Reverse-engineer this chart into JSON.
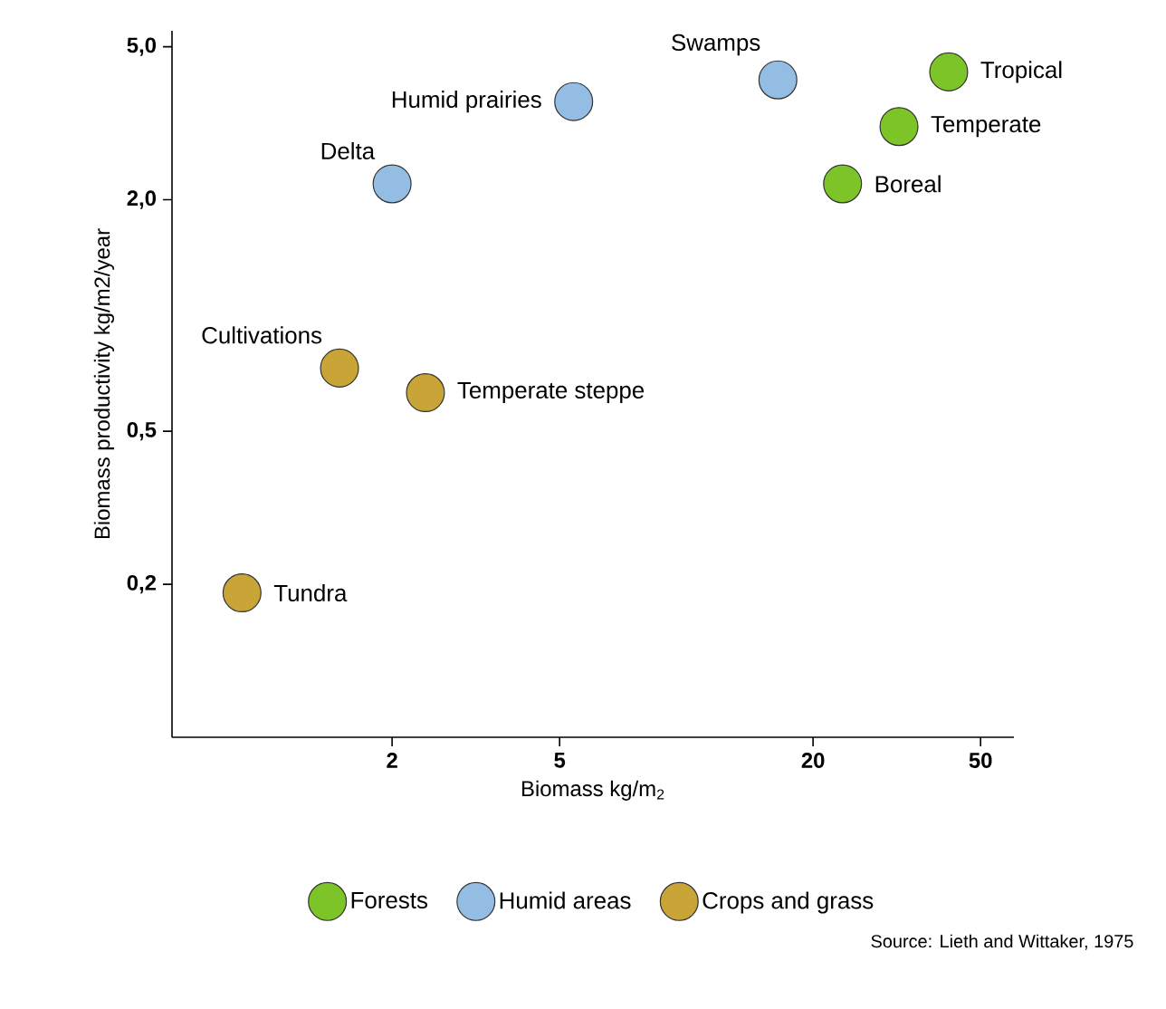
{
  "chart_data": {
    "type": "scatter",
    "xlabel": "Biomass  kg/m$_{2}$",
    "ylabel": "Biomass productivity kg/m2/year",
    "log": "xy",
    "xlim": [
      0.6,
      60
    ],
    "ylim": [
      0.08,
      5.5
    ],
    "xticks": [
      2,
      5,
      20,
      50
    ],
    "yticks": [
      {
        "value": 0.2,
        "label": "0,2"
      },
      {
        "value": 0.5,
        "label": "0,5"
      },
      {
        "value": 2,
        "label": "2,0"
      },
      {
        "value": 5,
        "label": "5,0"
      }
    ],
    "marker": "circle",
    "legend": "bottom",
    "grid": false,
    "series": [
      {
        "name": "Forests",
        "color": "#7cc427",
        "x": [
          42,
          32,
          23.5
        ],
        "values": [
          4.3,
          3.1,
          2.2
        ]
      },
      {
        "name": "Humid areas",
        "color": "#93bde2",
        "x": [
          16.5,
          5.4,
          2.0
        ],
        "values": [
          4.1,
          3.6,
          2.2
        ]
      },
      {
        "name": "Crops and grass",
        "color": "#c9a436",
        "x": [
          1.5,
          2.4,
          0.88
        ],
        "values": [
          0.73,
          0.63,
          0.19
        ]
      }
    ],
    "annotations": [
      {
        "text": "Tropical",
        "x": 42,
        "y": 4.3
      },
      {
        "text": "Temperate",
        "x": 32,
        "y": 3.1
      },
      {
        "text": "Boreal",
        "x": 23.5,
        "y": 2.2
      },
      {
        "text": "Swamps",
        "x": 16.5,
        "y": 4.1
      },
      {
        "text": "Humid prairies",
        "x": 5.4,
        "y": 3.6
      },
      {
        "text": "Delta",
        "x": 2.0,
        "y": 2.2
      },
      {
        "text": "Cultivations",
        "x": 1.5,
        "y": 0.73
      },
      {
        "text": "Temperate steppe",
        "x": 2.4,
        "y": 0.63
      },
      {
        "text": "Tundra",
        "x": 0.88,
        "y": 0.19
      },
      "Source: Lieth and Wittaker, 1975"
    ]
  }
}
